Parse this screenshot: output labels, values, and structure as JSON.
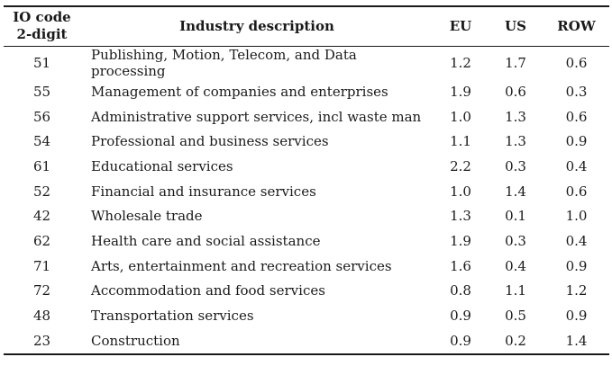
{
  "table": {
    "headers": {
      "code_line1": "IO code",
      "code_line2": "2-digit",
      "description": "Industry description",
      "eu": "EU",
      "us": "US",
      "row": "ROW"
    },
    "rows": [
      {
        "code": "51",
        "description": "Publishing, Motion, Telecom, and Data processing",
        "eu": "1.2",
        "us": "1.7",
        "row": "0.6"
      },
      {
        "code": "55",
        "description": "Management of companies and enterprises",
        "eu": "1.9",
        "us": "0.6",
        "row": "0.3"
      },
      {
        "code": "56",
        "description": "Administrative support services, incl waste man",
        "eu": "1.0",
        "us": "1.3",
        "row": "0.6"
      },
      {
        "code": "54",
        "description": "Professional and business services",
        "eu": "1.1",
        "us": "1.3",
        "row": "0.9"
      },
      {
        "code": "61",
        "description": "Educational services",
        "eu": "2.2",
        "us": "0.3",
        "row": "0.4"
      },
      {
        "code": "52",
        "description": "Financial and insurance services",
        "eu": "1.0",
        "us": "1.4",
        "row": "0.6"
      },
      {
        "code": "42",
        "description": "Wholesale trade",
        "eu": "1.3",
        "us": "0.1",
        "row": "1.0"
      },
      {
        "code": "62",
        "description": "Health care and social assistance",
        "eu": "1.9",
        "us": "0.3",
        "row": "0.4"
      },
      {
        "code": "71",
        "description": "Arts, entertainment and recreation services",
        "eu": "1.6",
        "us": "0.4",
        "row": "0.9"
      },
      {
        "code": "72",
        "description": "Accommodation and food services",
        "eu": "0.8",
        "us": "1.1",
        "row": "1.2"
      },
      {
        "code": "48",
        "description": "Transportation services",
        "eu": "0.9",
        "us": "0.5",
        "row": "0.9"
      },
      {
        "code": "23",
        "description": "Construction",
        "eu": "0.9",
        "us": "0.2",
        "row": "1.4"
      }
    ]
  }
}
